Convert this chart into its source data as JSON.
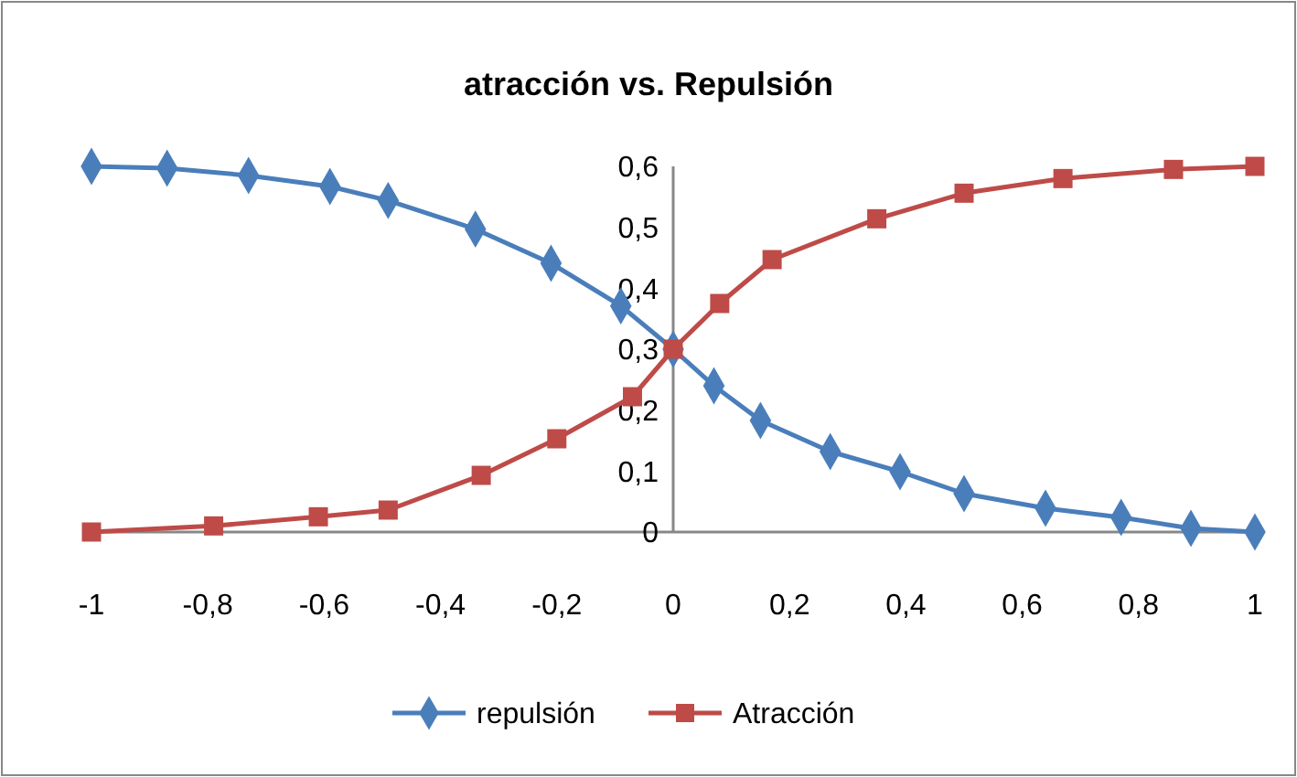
{
  "chart_data": {
    "type": "line",
    "title": "atracción vs. Repulsión",
    "xlim": [
      -1,
      1
    ],
    "ylim": [
      0,
      0.6
    ],
    "xticks": [
      {
        "value": -1,
        "label": "-1"
      },
      {
        "value": -0.8,
        "label": "-0,8"
      },
      {
        "value": -0.6,
        "label": "-0,6"
      },
      {
        "value": -0.4,
        "label": "-0,4"
      },
      {
        "value": -0.2,
        "label": "-0,2"
      },
      {
        "value": 0,
        "label": "0"
      },
      {
        "value": 0.2,
        "label": "0,2"
      },
      {
        "value": 0.4,
        "label": "0,4"
      },
      {
        "value": 0.6,
        "label": "0,6"
      },
      {
        "value": 0.8,
        "label": "0,8"
      },
      {
        "value": 1,
        "label": "1"
      }
    ],
    "yticks": [
      {
        "value": 0,
        "label": "0"
      },
      {
        "value": 0.1,
        "label": "0,1"
      },
      {
        "value": 0.2,
        "label": "0,2"
      },
      {
        "value": 0.3,
        "label": "0,3"
      },
      {
        "value": 0.4,
        "label": "0,4"
      },
      {
        "value": 0.5,
        "label": "0,5"
      },
      {
        "value": 0.6,
        "label": "0,6"
      }
    ],
    "grid": false,
    "legend": "bottom",
    "line_style": "solid",
    "series": [
      {
        "name": "repulsión",
        "color": "#4a7ebb",
        "marker": "diamond",
        "x": [
          -1,
          -0.87,
          -0.73,
          -0.59,
          -0.49,
          -0.34,
          -0.21,
          -0.09,
          0,
          0.07,
          0.15,
          0.27,
          0.39,
          0.5,
          0.64,
          0.77,
          0.89,
          1
        ],
        "values": [
          0.6,
          0.597,
          0.585,
          0.567,
          0.544,
          0.497,
          0.441,
          0.371,
          0.3,
          0.24,
          0.183,
          0.132,
          0.099,
          0.063,
          0.039,
          0.024,
          0.006,
          0
        ]
      },
      {
        "name": "Atracción",
        "color": "#be4b48",
        "marker": "square",
        "x": [
          -1,
          -0.79,
          -0.61,
          -0.49,
          -0.33,
          -0.2,
          -0.07,
          0,
          0.08,
          0.17,
          0.35,
          0.5,
          0.67,
          0.86,
          1
        ],
        "values": [
          0,
          0.01,
          0.025,
          0.036,
          0.093,
          0.153,
          0.222,
          0.3,
          0.375,
          0.447,
          0.514,
          0.556,
          0.58,
          0.595,
          0.6
        ]
      }
    ]
  }
}
